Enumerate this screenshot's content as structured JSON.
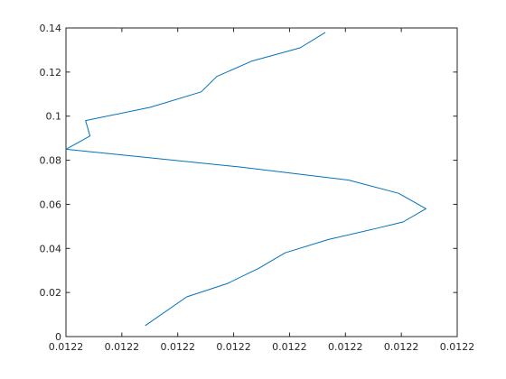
{
  "chart_data": {
    "type": "line",
    "title": "",
    "xlabel": "",
    "ylabel": "",
    "colors": {
      "line": "#0072bd",
      "axes": "#262626",
      "background": "#ffffff"
    },
    "xlim": [
      0,
      7
    ],
    "ylim": [
      0,
      0.14
    ],
    "x_ticks": [
      {
        "value": 0,
        "label": "0.0122"
      },
      {
        "value": 1,
        "label": "0.0122"
      },
      {
        "value": 2,
        "label": "0.0122"
      },
      {
        "value": 3,
        "label": "0.0122"
      },
      {
        "value": 4,
        "label": "0.0122"
      },
      {
        "value": 5,
        "label": "0.0122"
      },
      {
        "value": 6,
        "label": "0.0122"
      },
      {
        "value": 7,
        "label": "0.0122"
      }
    ],
    "y_ticks": [
      {
        "value": 0,
        "label": "0"
      },
      {
        "value": 0.02,
        "label": "0.02"
      },
      {
        "value": 0.04,
        "label": "0.04"
      },
      {
        "value": 0.06,
        "label": "0.06"
      },
      {
        "value": 0.08,
        "label": "0.08"
      },
      {
        "value": 0.1,
        "label": "0.1"
      },
      {
        "value": 0.12,
        "label": "0.12"
      },
      {
        "value": 0.14,
        "label": "0.14"
      }
    ],
    "grid": false,
    "series": [
      {
        "x": [
          1.42,
          2.16,
          2.88,
          3.45,
          3.92,
          4.69,
          5.54,
          6.03,
          6.44,
          5.95,
          5.06,
          3.09,
          0.0,
          0.43,
          0.35,
          1.51,
          2.42,
          2.7,
          3.33,
          4.19,
          4.64
        ],
        "y": [
          0.005,
          0.018,
          0.024,
          0.031,
          0.038,
          0.044,
          0.049,
          0.052,
          0.058,
          0.065,
          0.071,
          0.077,
          0.085,
          0.091,
          0.098,
          0.104,
          0.111,
          0.118,
          0.125,
          0.131,
          0.138
        ]
      }
    ]
  }
}
